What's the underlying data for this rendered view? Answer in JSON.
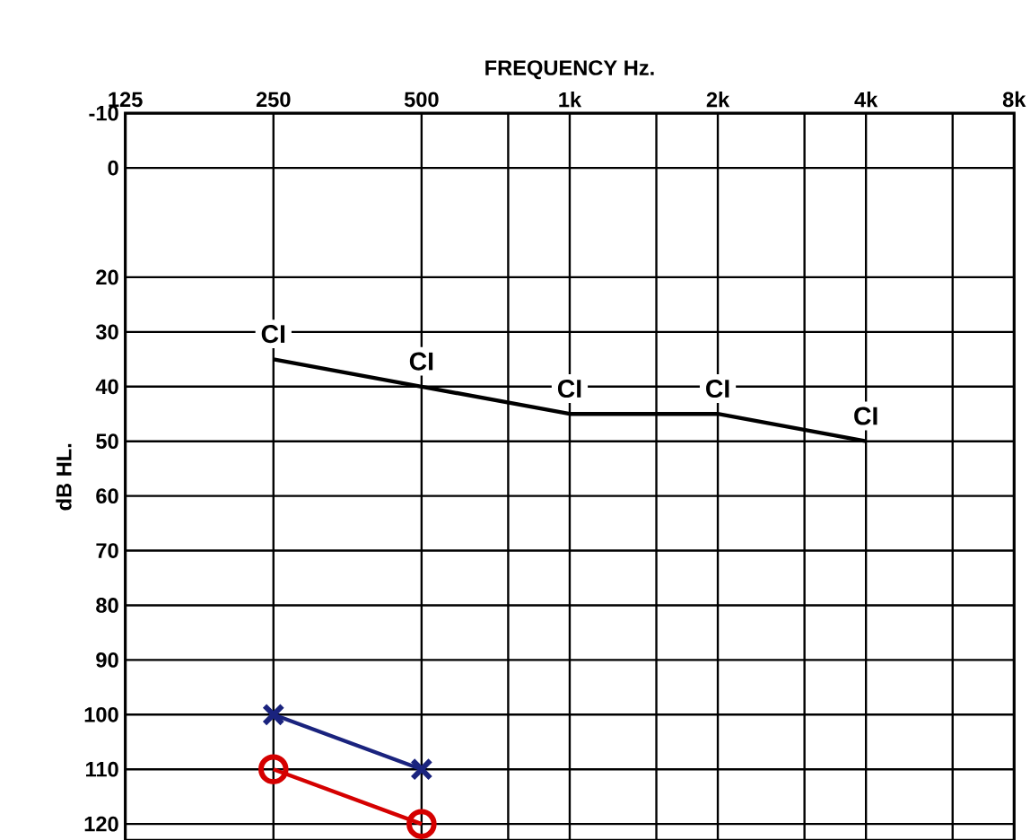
{
  "chart_data": {
    "type": "line",
    "xlabel": "FREQUENCY Hz.",
    "ylabel": "dB HL.",
    "log": "x",
    "grid": true,
    "line_style": "solid",
    "xlim": [
      125,
      8000
    ],
    "ylim": [
      123,
      -10
    ],
    "xticks": [
      125,
      250,
      500,
      {
        "value": 750,
        "label": null
      },
      {
        "value": 1000,
        "label": "1k"
      },
      {
        "value": 1500,
        "label": null
      },
      {
        "value": 2000,
        "label": "2k"
      },
      {
        "value": 3000,
        "label": null
      },
      {
        "value": 4000,
        "label": "4k"
      },
      {
        "value": 6000,
        "label": null
      },
      {
        "value": 8000,
        "label": "8k"
      }
    ],
    "yticks": [
      -10,
      0,
      20,
      30,
      40,
      50,
      60,
      70,
      80,
      90,
      100,
      110,
      120
    ],
    "series": [
      {
        "name": "CI",
        "color": "#000000",
        "marker": "none",
        "x": [
          250,
          500,
          1000,
          2000,
          4000
        ],
        "values": [
          35,
          40,
          45,
          45,
          50
        ]
      },
      {
        "color": "#1a237e",
        "marker": "cross",
        "x": [
          250,
          500
        ],
        "values": [
          100,
          110
        ]
      },
      {
        "color": "#d50000",
        "marker": "circle",
        "x": [
          250,
          500
        ],
        "values": [
          110,
          120
        ]
      }
    ]
  }
}
